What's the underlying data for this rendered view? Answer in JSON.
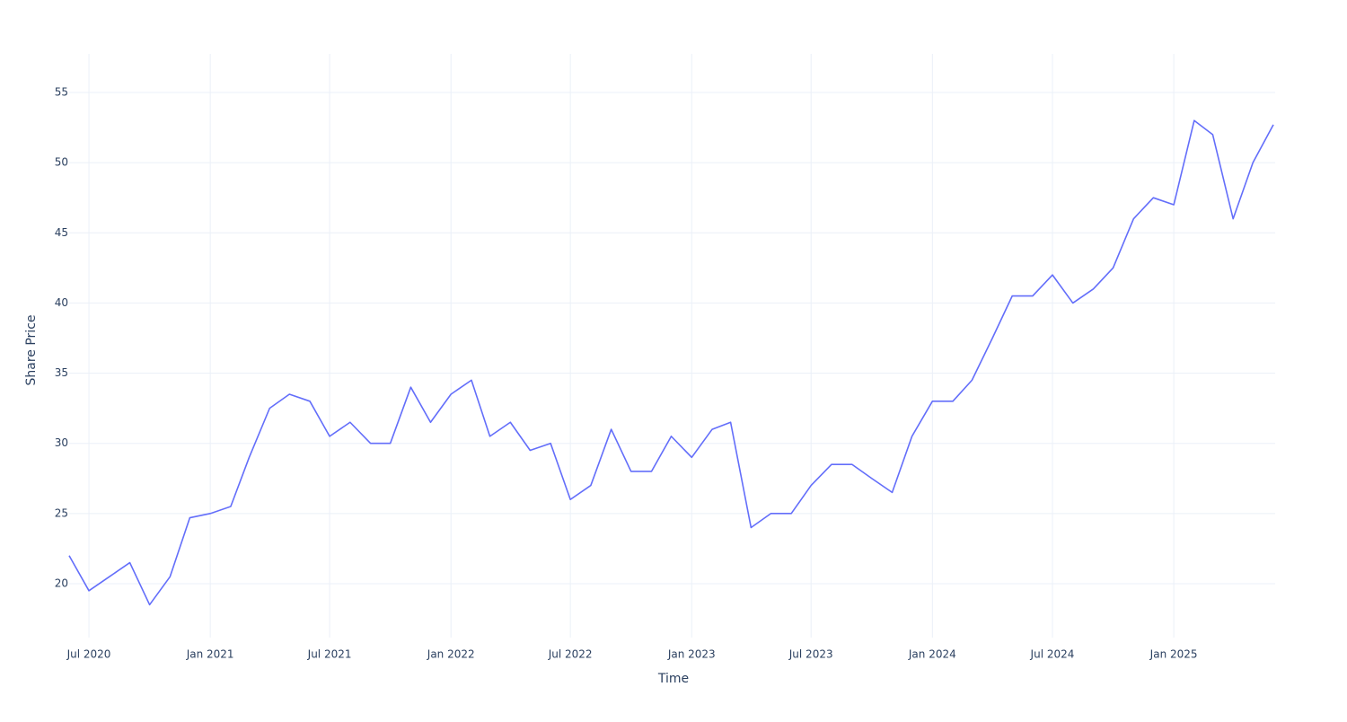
{
  "chart_data": {
    "type": "line",
    "x_label": "Time",
    "y_label": "Share Price",
    "x": [
      "2020-06",
      "2020-07",
      "2020-08",
      "2020-09",
      "2020-10",
      "2020-11",
      "2020-12",
      "2021-01",
      "2021-02",
      "2021-03",
      "2021-04",
      "2021-05",
      "2021-06",
      "2021-07",
      "2021-08",
      "2021-09",
      "2021-10",
      "2021-11",
      "2021-12",
      "2022-01",
      "2022-02",
      "2022-03",
      "2022-04",
      "2022-05",
      "2022-06",
      "2022-07",
      "2022-08",
      "2022-09",
      "2022-10",
      "2022-11",
      "2022-12",
      "2023-01",
      "2023-02",
      "2023-03",
      "2023-04",
      "2023-05",
      "2023-06",
      "2023-07",
      "2023-08",
      "2023-09",
      "2023-10",
      "2023-11",
      "2023-12",
      "2024-01",
      "2024-02",
      "2024-03",
      "2024-04",
      "2024-05",
      "2024-06",
      "2024-07",
      "2024-08",
      "2024-09",
      "2024-10",
      "2024-11",
      "2024-12",
      "2025-01",
      "2025-02",
      "2025-03",
      "2025-04",
      "2025-05",
      "2025-06"
    ],
    "series": [
      {
        "color": "#636efa",
        "values": [
          22,
          19.5,
          20.5,
          21.5,
          18.5,
          20.5,
          24.7,
          25,
          25.5,
          29,
          32.5,
          33.5,
          33,
          30.5,
          31.5,
          30,
          30,
          34,
          31.5,
          33.5,
          34.5,
          30.5,
          31.5,
          29.5,
          30,
          26,
          27,
          31,
          28,
          28,
          30.5,
          29,
          31,
          31.5,
          24,
          25,
          25,
          27,
          28.5,
          28.5,
          27.5,
          26.5,
          30.5,
          33,
          33,
          34.5,
          37.5,
          40.5,
          40.5,
          42,
          40,
          41,
          42.5,
          46,
          47.5,
          47,
          53,
          52,
          46,
          50,
          52.7
        ]
      }
    ],
    "xlim": [
      "2020-06",
      "2025-06"
    ],
    "xticks": [
      {
        "value": "2020-07",
        "label": "Jul 2020"
      },
      {
        "value": "2021-01",
        "label": "Jan 2021"
      },
      {
        "value": "2021-07",
        "label": "Jul 2021"
      },
      {
        "value": "2022-01",
        "label": "Jan 2022"
      },
      {
        "value": "2022-07",
        "label": "Jul 2022"
      },
      {
        "value": "2023-01",
        "label": "Jan 2023"
      },
      {
        "value": "2023-07",
        "label": "Jul 2023"
      },
      {
        "value": "2024-01",
        "label": "Jan 2024"
      },
      {
        "value": "2024-07",
        "label": "Jul 2024"
      },
      {
        "value": "2025-01",
        "label": "Jan 2025"
      }
    ],
    "ylim": [
      16.16,
      57.75
    ],
    "yticks": [
      20,
      25,
      30,
      35,
      40,
      45,
      50,
      55
    ],
    "grid": true
  }
}
